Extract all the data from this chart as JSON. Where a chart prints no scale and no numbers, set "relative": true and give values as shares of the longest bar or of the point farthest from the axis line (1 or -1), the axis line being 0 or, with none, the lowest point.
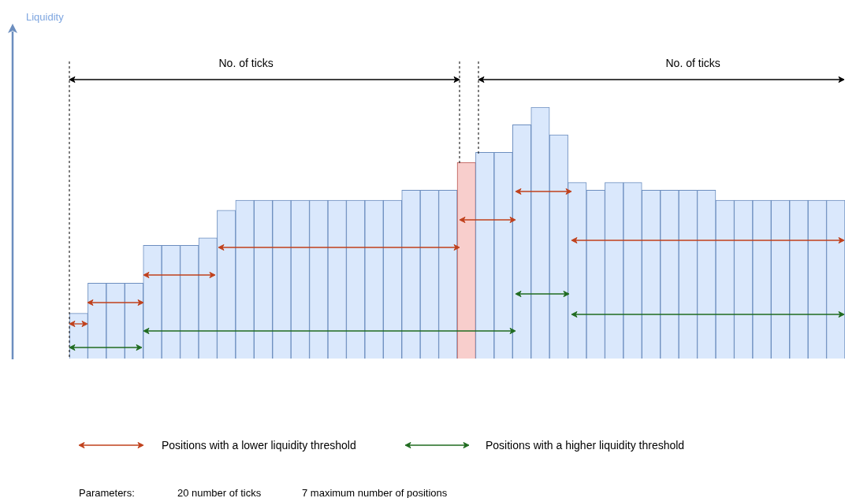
{
  "chart_data": {
    "type": "bar",
    "relative": true,
    "categories": [
      null,
      null,
      null,
      null,
      null,
      null,
      null,
      null,
      null,
      null,
      null,
      null,
      null,
      null,
      null,
      null,
      null,
      null,
      null,
      null,
      null,
      null,
      null,
      null,
      null,
      null,
      null,
      null,
      null,
      null,
      null,
      null,
      null,
      null,
      null,
      null,
      null,
      null,
      null,
      null,
      null,
      null
    ],
    "values": [
      0.18,
      0.3,
      0.3,
      0.3,
      0.45,
      0.45,
      0.45,
      0.48,
      0.59,
      0.63,
      0.63,
      0.63,
      0.63,
      0.63,
      0.63,
      0.63,
      0.63,
      0.63,
      0.67,
      0.67,
      0.67,
      0.78,
      0.82,
      0.82,
      0.93,
      1,
      0.89,
      0.7,
      0.67,
      0.7,
      0.7,
      0.67,
      0.67,
      0.67,
      0.67,
      0.63,
      0.63,
      0.63,
      0.63,
      0.63,
      0.63,
      0.63
    ],
    "colors": [
      "#dae8fc",
      "#dae8fc",
      "#dae8fc",
      "#dae8fc",
      "#dae8fc",
      "#dae8fc",
      "#dae8fc",
      "#dae8fc",
      "#dae8fc",
      "#dae8fc",
      "#dae8fc",
      "#dae8fc",
      "#dae8fc",
      "#dae8fc",
      "#dae8fc",
      "#dae8fc",
      "#dae8fc",
      "#dae8fc",
      "#dae8fc",
      "#dae8fc",
      "#dae8fc",
      "#f8cecc",
      "#dae8fc",
      "#dae8fc",
      "#dae8fc",
      "#dae8fc",
      "#dae8fc",
      "#dae8fc",
      "#dae8fc",
      "#dae8fc",
      "#dae8fc",
      "#dae8fc",
      "#dae8fc",
      "#dae8fc",
      "#dae8fc",
      "#dae8fc",
      "#dae8fc",
      "#dae8fc",
      "#dae8fc",
      "#dae8fc",
      "#dae8fc",
      "#dae8fc"
    ],
    "annotations": [
      "Liquidity",
      "No. of ticks",
      "No. of ticks",
      "Positions with a lower liquidity threshold",
      "Positions with a higher liquidity threshold",
      "Parameters:",
      "20 number of ticks",
      "7 maximum number of positions"
    ]
  }
}
